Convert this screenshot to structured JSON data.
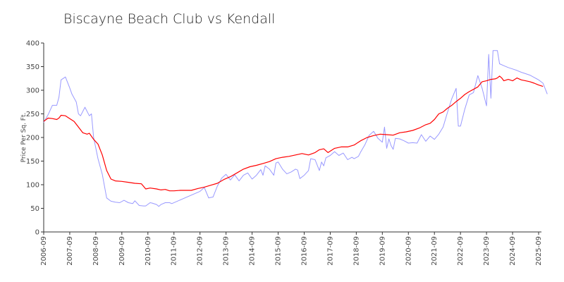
{
  "chart_data": {
    "type": "line",
    "title": "Biscayne Beach Club vs Kendall",
    "xlabel": "",
    "ylabel": "Price Per Sq. Ft.",
    "ylim": [
      0,
      400
    ],
    "yticks": [
      0,
      50,
      100,
      150,
      200,
      250,
      300,
      350,
      400
    ],
    "xlim": [
      "2006-09",
      "2025-09"
    ],
    "xticks": [
      "2006-09",
      "2007-09",
      "2008-09",
      "2009-09",
      "2010-09",
      "2011-09",
      "2012-09",
      "2013-09",
      "2014-09",
      "2015-09",
      "2016-09",
      "2017-09",
      "2018-09",
      "2019-09",
      "2020-09",
      "2021-09",
      "2022-09",
      "2023-09",
      "2024-09",
      "2025-09"
    ],
    "grid": false,
    "legend": "none",
    "series": [
      {
        "color": "#9999ff",
        "points": [
          [
            "2006-09",
            232
          ],
          [
            "2006-11",
            248
          ],
          [
            "2007-01",
            268
          ],
          [
            "2007-03",
            268
          ],
          [
            "2007-04",
            285
          ],
          [
            "2007-05",
            322
          ],
          [
            "2007-07",
            328
          ],
          [
            "2007-09",
            305
          ],
          [
            "2007-10",
            292
          ],
          [
            "2007-12",
            275
          ],
          [
            "2008-01",
            250
          ],
          [
            "2008-02",
            246
          ],
          [
            "2008-04",
            264
          ],
          [
            "2008-05",
            255
          ],
          [
            "2008-06",
            246
          ],
          [
            "2008-07",
            250
          ],
          [
            "2008-08",
            200
          ],
          [
            "2008-10",
            155
          ],
          [
            "2008-12",
            122
          ],
          [
            "2009-02",
            72
          ],
          [
            "2009-04",
            65
          ],
          [
            "2009-06",
            63
          ],
          [
            "2009-08",
            62
          ],
          [
            "2009-10",
            67
          ],
          [
            "2009-12",
            62
          ],
          [
            "2010-02",
            60
          ],
          [
            "2010-03",
            66
          ],
          [
            "2010-05",
            56
          ],
          [
            "2010-07",
            55
          ],
          [
            "2010-08",
            55
          ],
          [
            "2010-10",
            62
          ],
          [
            "2010-11",
            61
          ],
          [
            "2011-01",
            58
          ],
          [
            "2011-02",
            54
          ],
          [
            "2011-03",
            58
          ],
          [
            "2011-05",
            62
          ],
          [
            "2011-07",
            62
          ],
          [
            "2011-08",
            60
          ],
          [
            "2012-09",
            86
          ],
          [
            "2012-11",
            94
          ],
          [
            "2013-01",
            72
          ],
          [
            "2013-03",
            74
          ],
          [
            "2013-05",
            97
          ],
          [
            "2013-07",
            114
          ],
          [
            "2013-09",
            122
          ],
          [
            "2013-11",
            110
          ],
          [
            "2014-01",
            121
          ],
          [
            "2014-03",
            108
          ],
          [
            "2014-05",
            120
          ],
          [
            "2014-07",
            125
          ],
          [
            "2014-09",
            112
          ],
          [
            "2014-11",
            120
          ],
          [
            "2015-01",
            132
          ],
          [
            "2015-02",
            120
          ],
          [
            "2015-03",
            140
          ],
          [
            "2015-05",
            133
          ],
          [
            "2015-07",
            120
          ],
          [
            "2015-08",
            146
          ],
          [
            "2015-09",
            148
          ],
          [
            "2015-11",
            133
          ],
          [
            "2016-01",
            123
          ],
          [
            "2016-03",
            127
          ],
          [
            "2016-05",
            133
          ],
          [
            "2016-06",
            131
          ],
          [
            "2016-07",
            113
          ],
          [
            "2016-09",
            120
          ],
          [
            "2016-11",
            130
          ],
          [
            "2016-12",
            155
          ],
          [
            "2017-02",
            153
          ],
          [
            "2017-04",
            130
          ],
          [
            "2017-05",
            148
          ],
          [
            "2017-06",
            140
          ],
          [
            "2017-07",
            157
          ],
          [
            "2017-09",
            162
          ],
          [
            "2017-11",
            170
          ],
          [
            "2018-01",
            162
          ],
          [
            "2018-03",
            167
          ],
          [
            "2018-05",
            153
          ],
          [
            "2018-07",
            158
          ],
          [
            "2018-08",
            155
          ],
          [
            "2018-10",
            160
          ],
          [
            "2018-11",
            169
          ],
          [
            "2019-01",
            185
          ],
          [
            "2019-03",
            205
          ],
          [
            "2019-05",
            213
          ],
          [
            "2019-07",
            198
          ],
          [
            "2019-09",
            190
          ],
          [
            "2019-10",
            222
          ],
          [
            "2019-11",
            177
          ],
          [
            "2019-12",
            197
          ],
          [
            "2020-01",
            183
          ],
          [
            "2020-02",
            175
          ],
          [
            "2020-03",
            198
          ],
          [
            "2020-05",
            197
          ],
          [
            "2020-07",
            193
          ],
          [
            "2020-09",
            188
          ],
          [
            "2020-11",
            189
          ],
          [
            "2021-01",
            188
          ],
          [
            "2021-03",
            206
          ],
          [
            "2021-05",
            192
          ],
          [
            "2021-07",
            203
          ],
          [
            "2021-09",
            196
          ],
          [
            "2021-11",
            207
          ],
          [
            "2022-01",
            222
          ],
          [
            "2022-03",
            253
          ],
          [
            "2022-05",
            282
          ],
          [
            "2022-07",
            304
          ],
          [
            "2022-08",
            224
          ],
          [
            "2022-09",
            224
          ],
          [
            "2022-11",
            260
          ],
          [
            "2023-01",
            290
          ],
          [
            "2023-03",
            295
          ],
          [
            "2023-05",
            331
          ],
          [
            "2023-07",
            304
          ],
          [
            "2023-09",
            267
          ],
          [
            "2023-10",
            376
          ],
          [
            "2023-11",
            283
          ],
          [
            "2023-12",
            384
          ],
          [
            "2024-02",
            384
          ],
          [
            "2024-03",
            356
          ],
          [
            "2024-05",
            352
          ],
          [
            "2024-07",
            348
          ],
          [
            "2024-09",
            345
          ],
          [
            "2024-11",
            342
          ],
          [
            "2025-01",
            338
          ],
          [
            "2025-03",
            335
          ],
          [
            "2025-05",
            332
          ],
          [
            "2025-07",
            327
          ],
          [
            "2025-09",
            322
          ],
          [
            "2025-11",
            315
          ],
          [
            "2026-01",
            292
          ]
        ]
      },
      {
        "color": "#ff0000",
        "points": [
          [
            "2006-09",
            234
          ],
          [
            "2006-11",
            241
          ],
          [
            "2007-01",
            240
          ],
          [
            "2007-03",
            238
          ],
          [
            "2007-04",
            241
          ],
          [
            "2007-05",
            247
          ],
          [
            "2007-07",
            246
          ],
          [
            "2007-09",
            240
          ],
          [
            "2007-11",
            234
          ],
          [
            "2008-01",
            222
          ],
          [
            "2008-03",
            210
          ],
          [
            "2008-05",
            207
          ],
          [
            "2008-06",
            209
          ],
          [
            "2008-08",
            196
          ],
          [
            "2008-10",
            186
          ],
          [
            "2008-12",
            163
          ],
          [
            "2009-02",
            130
          ],
          [
            "2009-04",
            112
          ],
          [
            "2009-06",
            108
          ],
          [
            "2009-09",
            107
          ],
          [
            "2009-12",
            105
          ],
          [
            "2010-03",
            103
          ],
          [
            "2010-06",
            102
          ],
          [
            "2010-08",
            91
          ],
          [
            "2010-10",
            93
          ],
          [
            "2011-01",
            91
          ],
          [
            "2011-03",
            89
          ],
          [
            "2011-05",
            90
          ],
          [
            "2011-07",
            87
          ],
          [
            "2011-09",
            87
          ],
          [
            "2011-12",
            88
          ],
          [
            "2012-02",
            88
          ],
          [
            "2012-05",
            88
          ],
          [
            "2012-08",
            92
          ],
          [
            "2012-11",
            95
          ],
          [
            "2013-02",
            99
          ],
          [
            "2013-05",
            103
          ],
          [
            "2013-08",
            111
          ],
          [
            "2013-11",
            117
          ],
          [
            "2014-02",
            125
          ],
          [
            "2014-05",
            133
          ],
          [
            "2014-08",
            138
          ],
          [
            "2014-11",
            141
          ],
          [
            "2015-02",
            145
          ],
          [
            "2015-05",
            149
          ],
          [
            "2015-08",
            155
          ],
          [
            "2015-11",
            158
          ],
          [
            "2016-02",
            160
          ],
          [
            "2016-05",
            163
          ],
          [
            "2016-08",
            166
          ],
          [
            "2016-11",
            163
          ],
          [
            "2017-02",
            168
          ],
          [
            "2017-04",
            174
          ],
          [
            "2017-06",
            176
          ],
          [
            "2017-08",
            168
          ],
          [
            "2017-11",
            177
          ],
          [
            "2018-02",
            180
          ],
          [
            "2018-05",
            180
          ],
          [
            "2018-08",
            184
          ],
          [
            "2018-11",
            193
          ],
          [
            "2019-02",
            200
          ],
          [
            "2019-05",
            204
          ],
          [
            "2019-08",
            207
          ],
          [
            "2019-11",
            206
          ],
          [
            "2020-02",
            205
          ],
          [
            "2020-05",
            210
          ],
          [
            "2020-08",
            212
          ],
          [
            "2020-11",
            215
          ],
          [
            "2021-02",
            220
          ],
          [
            "2021-05",
            227
          ],
          [
            "2021-07",
            230
          ],
          [
            "2021-09",
            238
          ],
          [
            "2021-11",
            250
          ],
          [
            "2022-01",
            254
          ],
          [
            "2022-03",
            262
          ],
          [
            "2022-05",
            268
          ],
          [
            "2022-07",
            276
          ],
          [
            "2022-09",
            283
          ],
          [
            "2022-11",
            291
          ],
          [
            "2023-01",
            297
          ],
          [
            "2023-03",
            302
          ],
          [
            "2023-05",
            307
          ],
          [
            "2023-07",
            318
          ],
          [
            "2023-09",
            320
          ],
          [
            "2023-11",
            323
          ],
          [
            "2024-01",
            324
          ],
          [
            "2024-02",
            326
          ],
          [
            "2024-03",
            330
          ],
          [
            "2024-04",
            326
          ],
          [
            "2024-05",
            320
          ],
          [
            "2024-07",
            323
          ],
          [
            "2024-09",
            320
          ],
          [
            "2024-11",
            326
          ],
          [
            "2025-01",
            322
          ],
          [
            "2025-03",
            320
          ],
          [
            "2025-05",
            318
          ],
          [
            "2025-07",
            315
          ],
          [
            "2025-09",
            311
          ],
          [
            "2025-11",
            308
          ]
        ]
      }
    ]
  }
}
